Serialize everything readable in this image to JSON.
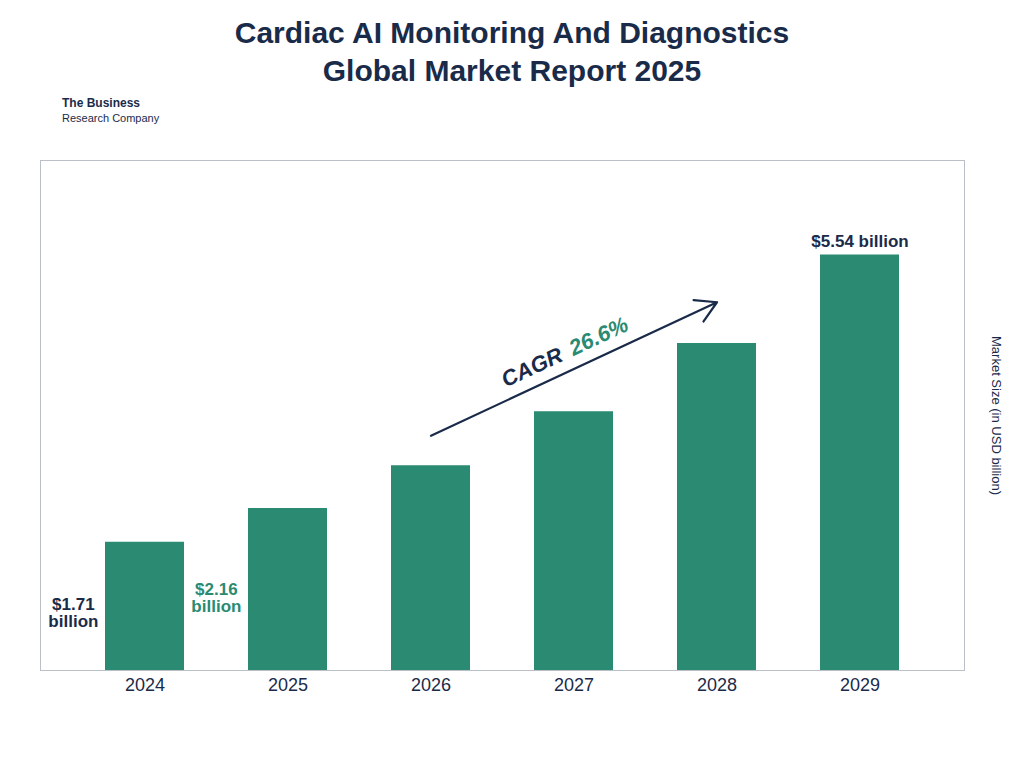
{
  "chart_data": {
    "type": "bar",
    "title": "Cardiac AI Monitoring And Diagnostics",
    "subtitle": "Global Market Report 2025",
    "categories": [
      "2024",
      "2025",
      "2026",
      "2027",
      "2028",
      "2029"
    ],
    "values": [
      1.71,
      2.16,
      2.73,
      3.45,
      4.36,
      5.54
    ],
    "color": "#2a8a72",
    "ylabel": "Market Size (in USD billion)",
    "ylim": [
      0,
      6.8
    ],
    "grid": false,
    "tick_labels": "x",
    "value_labels": [
      "$1.71\nbillion",
      "$2.16\nbillion",
      null,
      null,
      null,
      "$5.54 billion"
    ],
    "value_label_colors": [
      "#1a2b4a",
      "#2a8a72",
      null,
      null,
      null,
      "#1a2b4a"
    ],
    "annotations": [
      {
        "text": "CAGR",
        "color": "#1a2b4a"
      },
      {
        "text": "26.6%",
        "color": "#2a8a72"
      }
    ],
    "arrow": {
      "from": "2026",
      "to": "2028",
      "color": "#1a2b4a"
    },
    "logo_text": [
      "The Business",
      "Research Company"
    ]
  }
}
